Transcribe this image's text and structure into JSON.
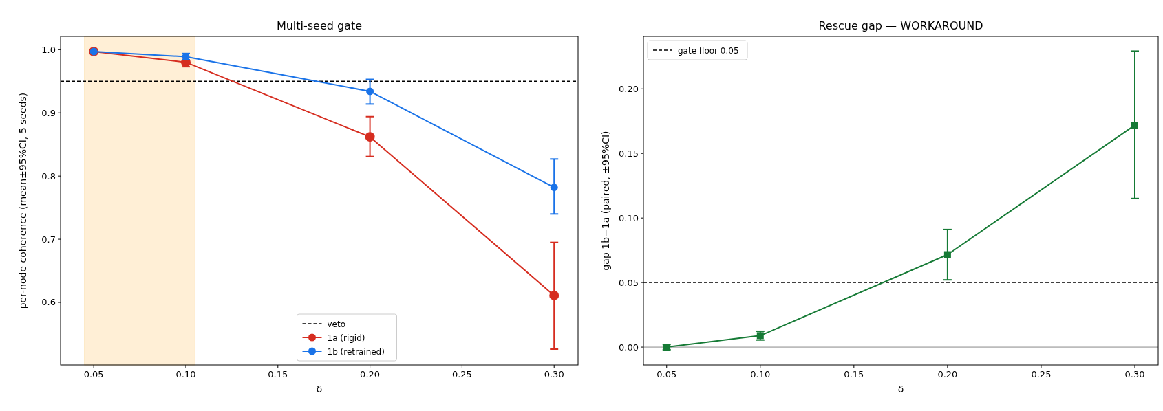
{
  "chart_data": [
    {
      "type": "line",
      "title": "Multi-seed gate",
      "xlabel": "δ",
      "ylabel": "per-node coherence (mean±95%CI, 5 seeds)",
      "x": [
        0.05,
        0.1,
        0.2,
        0.3
      ],
      "series": [
        {
          "name": "1a (rigid)",
          "color": "#d62d20",
          "values": [
            0.997,
            0.98,
            0.862,
            0.611
          ],
          "errors": [
            null,
            [
              0.973,
              0.98
            ],
            [
              0.831,
              0.894
            ],
            [
              0.526,
              0.695
            ]
          ]
        },
        {
          "name": "1b (retrained)",
          "color": "#1a73e8",
          "values": [
            0.997,
            0.989,
            0.934,
            0.782
          ],
          "errors": [
            null,
            [
              0.984,
              0.994
            ],
            [
              0.914,
              0.953
            ],
            [
              0.74,
              0.827
            ]
          ]
        }
      ],
      "xlim": [
        0.032,
        0.313
      ],
      "xticks": [
        {
          "value": 0.05,
          "label": "0.05"
        },
        {
          "value": 0.1,
          "label": "0.10"
        },
        {
          "value": 0.15,
          "label": "0.15"
        },
        {
          "value": 0.2,
          "label": "0.20"
        },
        {
          "value": 0.25,
          "label": "0.25"
        },
        {
          "value": 0.3,
          "label": "0.30"
        }
      ],
      "ylim": [
        0.501,
        1.021
      ],
      "yticks": [
        0.6,
        0.7,
        0.8,
        0.9,
        {
          "value": 1.0,
          "label": "1.0"
        }
      ],
      "ref_lines": [
        {
          "axis": "y",
          "value": 0.95,
          "label": "veto",
          "color": "#000000",
          "line_style": "dashed"
        }
      ],
      "bands": [
        {
          "axis": "x",
          "from": 0.045,
          "to": 0.105,
          "color": "#ffefd6"
        }
      ],
      "marker": "circle",
      "legend": "bottom",
      "grid": false
    },
    {
      "type": "line",
      "title": "Rescue gap — WORKAROUND",
      "xlabel": "δ",
      "ylabel": "gap 1b−1a (paired, ±95%CI)",
      "x": [
        0.05,
        0.1,
        0.2,
        0.3
      ],
      "series": [
        {
          "color": "#157a35",
          "values": [
            0.0,
            0.0089,
            0.0716,
            0.1719
          ],
          "errors": [
            [
              -0.002,
              0.002
            ],
            [
              0.0055,
              0.0123
            ],
            [
              0.0521,
              0.0911
            ],
            [
              0.1151,
              0.2292
            ]
          ]
        }
      ],
      "xlim": [
        0.0376,
        0.3125
      ],
      "xticks": [
        {
          "value": 0.05,
          "label": "0.05"
        },
        {
          "value": 0.1,
          "label": "0.10"
        },
        {
          "value": 0.15,
          "label": "0.15"
        },
        {
          "value": 0.2,
          "label": "0.20"
        },
        {
          "value": 0.25,
          "label": "0.25"
        },
        {
          "value": 0.3,
          "label": "0.30"
        }
      ],
      "ylim": [
        -0.0138,
        0.2406
      ],
      "yticks": [
        {
          "value": 0,
          "label": "0.00"
        },
        {
          "value": 0.05,
          "label": "0.05"
        },
        {
          "value": 0.1,
          "label": "0.10"
        },
        {
          "value": 0.15,
          "label": "0.15"
        },
        {
          "value": 0.2,
          "label": "0.20"
        }
      ],
      "ref_lines": [
        {
          "axis": "y",
          "value": 0.05,
          "label": "gate floor 0.05",
          "color": "#000000",
          "line_style": "dashed"
        },
        {
          "axis": "y",
          "value": 0,
          "color": "#888888",
          "line_style": "solid"
        }
      ],
      "marker": "square",
      "legend": "top left",
      "grid": false
    }
  ]
}
